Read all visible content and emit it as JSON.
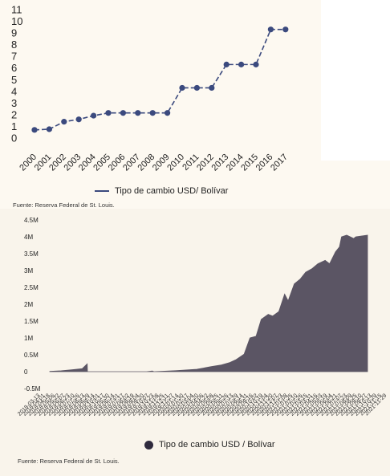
{
  "chart_data": [
    {
      "type": "line",
      "title": "",
      "xlabel": "",
      "ylabel": "",
      "categories": [
        "2000",
        "2001",
        "2002",
        "2003",
        "2004",
        "2005",
        "2006",
        "2007",
        "2008",
        "2009",
        "2010",
        "2011",
        "2012",
        "2013",
        "2014",
        "2015",
        "2016",
        "2017"
      ],
      "series": [
        {
          "name": "Tipo de cambio USD/ Bolívar",
          "values": [
            0.7,
            0.76,
            1.4,
            1.6,
            1.92,
            2.15,
            2.15,
            2.15,
            2.15,
            2.15,
            4.3,
            4.3,
            4.3,
            6.3,
            6.3,
            6.3,
            9.3,
            9.3
          ]
        }
      ],
      "ylim": [
        0,
        11
      ],
      "yticks": [
        0,
        1,
        2,
        3,
        4,
        5,
        6,
        7,
        8,
        9,
        10,
        11
      ],
      "legend_label": "Tipo de cambio USD/ Bolívar",
      "legend_position": "bottom-center",
      "line_color": "#3b4a7e",
      "marker": "circle",
      "grid": false,
      "source": "Fuente: Reserva Federal de St. Louis."
    },
    {
      "type": "area",
      "title": "",
      "xlabel": "",
      "ylabel": "",
      "date_range": [
        "2018-03-13",
        "2021-11-29"
      ],
      "x": [
        "2018-03-13",
        "2018-05-01",
        "2018-06-15",
        "2018-07-30",
        "2018-08-20",
        "2018-08-21",
        "2019-05-01",
        "2019-05-25",
        "2019-06-01",
        "2019-09-01",
        "2019-12-01",
        "2020-02-01",
        "2020-03-15",
        "2020-04-20",
        "2020-05-15",
        "2020-06-20",
        "2020-07-15",
        "2020-08-10",
        "2020-09-01",
        "2020-10-01",
        "2020-10-20",
        "2020-11-15",
        "2020-12-10",
        "2020-12-25",
        "2021-01-20",
        "2021-02-15",
        "2021-03-10",
        "2021-04-05",
        "2021-05-01",
        "2021-06-01",
        "2021-06-20",
        "2021-07-15",
        "2021-08-01",
        "2021-08-10",
        "2021-09-01",
        "2021-10-01",
        "2021-10-10",
        "2021-11-29"
      ],
      "values": [
        10000,
        25000,
        55000,
        90000,
        230000,
        0,
        0,
        20000,
        0,
        30000,
        70000,
        150000,
        200000,
        270000,
        350000,
        520000,
        1000000,
        1050000,
        1550000,
        1700000,
        1650000,
        1780000,
        2300000,
        2100000,
        2600000,
        2750000,
        2950000,
        3050000,
        3200000,
        3300000,
        3200000,
        3550000,
        3700000,
        4000000,
        4050000,
        3950000,
        4000000,
        4050000
      ],
      "ylim": [
        -500000,
        4500000
      ],
      "yticks": [
        -500000,
        0,
        500000,
        1000000,
        1500000,
        2000000,
        2500000,
        3000000,
        3500000,
        4000000,
        4500000
      ],
      "ytick_labels": [
        "-0.5M",
        "0",
        "0.5M",
        "1M",
        "1.5M",
        "2M",
        "2.5M",
        "3M",
        "3.5M",
        "4M",
        "4.5M"
      ],
      "xtick_labels": [
        "2018-03-13",
        "2018-04-01",
        "2018-04-18",
        "2018-05-06",
        "2018-05-22",
        "2018-06-07",
        "2018-06-23",
        "2018-07-10",
        "2018-07-26",
        "2018-08-13",
        "2018-08-29",
        "2018-09-14",
        "2018-10-01",
        "2018-10-17",
        "2019-05-30",
        "2019-06-14",
        "2019-07-01",
        "2019-07-17",
        "2019-08-02",
        "2019-08-19",
        "2019-09-04",
        "2019-09-20",
        "2019-10-07",
        "2019-10-23",
        "2019-11-08",
        "2019-11-25",
        "2019-12-11",
        "2019-12-27",
        "2020-01-14",
        "2020-01-30",
        "2020-02-17",
        "2020-03-04",
        "2020-03-20",
        "2020-04-06",
        "2020-04-22",
        "2020-05-08",
        "2020-05-25",
        "2020-06-11",
        "2020-06-26",
        "2020-07-13",
        "2020-07-29",
        "2020-08-14",
        "2020-08-31",
        "2020-09-16",
        "2020-10-02",
        "2020-10-19",
        "2020-11-04",
        "2020-11-20",
        "2020-12-07",
        "2020-12-23",
        "2021-01-08",
        "2021-01-25",
        "2021-02-10",
        "2021-02-26",
        "2021-03-15",
        "2021-03-31",
        "2021-04-16",
        "2021-05-03",
        "2021-05-19",
        "2021-06-04",
        "2021-06-21",
        "2021-07-07",
        "2021-07-23",
        "2021-08-09",
        "2021-08-25",
        "2021-09-10",
        "2021-09-27",
        "2021-10-13",
        "2021-10-29",
        "2021-11-15",
        "2021-11-29"
      ],
      "legend_label": "Tipo de cambio USD / Bolívar",
      "legend_position": "bottom-center",
      "fill_color": "#5b5564",
      "grid": false,
      "source": "Fuente: Reserva Federal de St. Louis."
    }
  ]
}
